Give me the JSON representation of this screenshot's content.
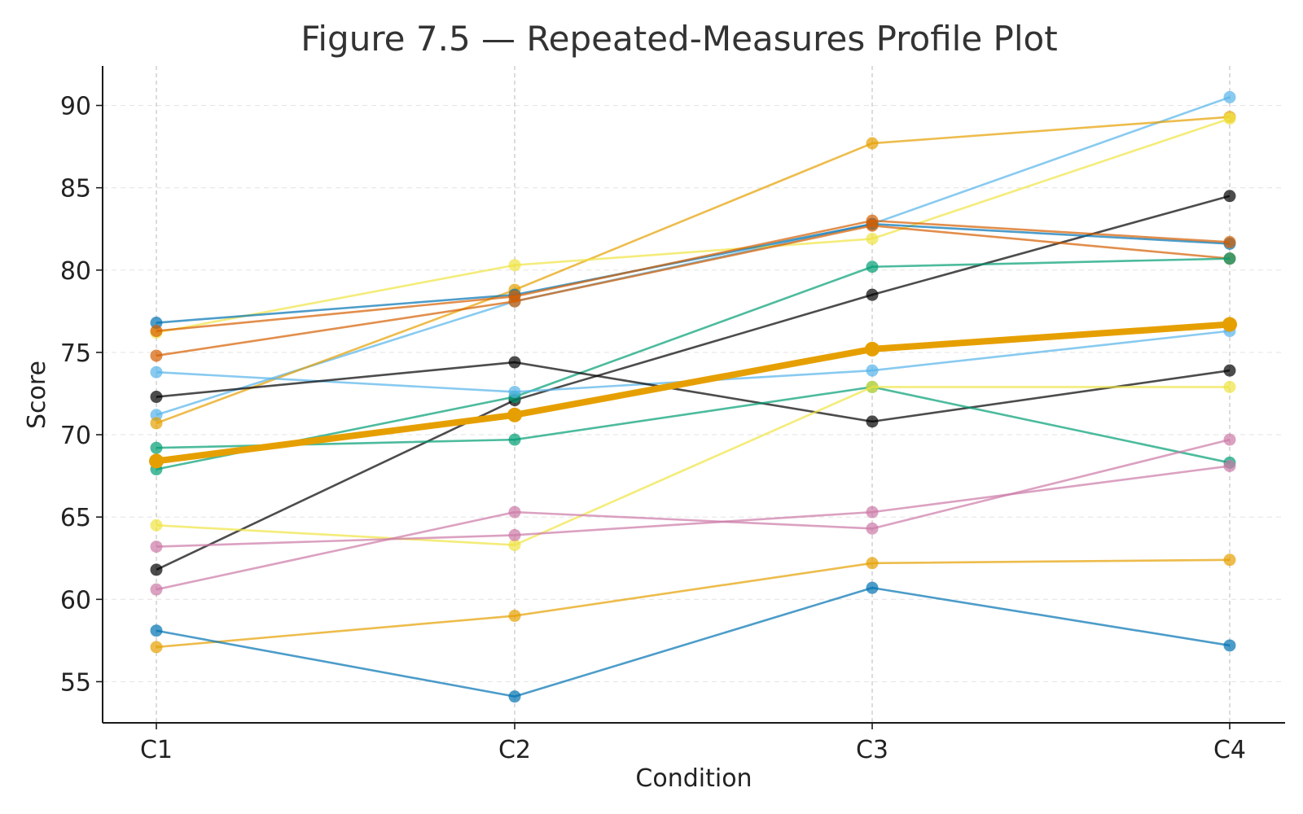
{
  "chart_data": {
    "type": "line",
    "title": "Figure 7.5 — Repeated-Measures Profile Plot",
    "xlabel": "Condition",
    "ylabel": "Score",
    "categories": [
      "C1",
      "C2",
      "C3",
      "C4"
    ],
    "ylim": [
      52.5,
      92.4
    ],
    "yticks": [
      55,
      60,
      65,
      70,
      75,
      80,
      85,
      90
    ],
    "grid": {
      "horizontal": true,
      "vertical": true
    },
    "legend": "none",
    "series": [
      {
        "color": "#56B4E9",
        "values": [
          71.2,
          78.1,
          82.8,
          90.5
        ]
      },
      {
        "color": "#E69F00",
        "values": [
          70.7,
          78.8,
          87.7,
          89.3
        ]
      },
      {
        "color": "#F0E442",
        "values": [
          76.2,
          80.3,
          81.9,
          89.2
        ]
      },
      {
        "color": "#000000",
        "values": [
          61.8,
          72.1,
          78.5,
          84.5
        ]
      },
      {
        "color": "#0072B2",
        "values": [
          76.8,
          78.5,
          82.8,
          81.6
        ]
      },
      {
        "color": "#D55E00",
        "values": [
          76.3,
          78.4,
          83.0,
          81.7
        ]
      },
      {
        "color": "#D55E00",
        "values": [
          74.8,
          78.1,
          82.7,
          80.7
        ]
      },
      {
        "color": "#009E73",
        "values": [
          67.9,
          72.3,
          80.2,
          80.7
        ]
      },
      {
        "color": "#56B4E9",
        "values": [
          73.8,
          72.6,
          73.9,
          76.3
        ]
      },
      {
        "color": "#000000",
        "values": [
          72.3,
          74.4,
          70.8,
          73.9
        ]
      },
      {
        "color": "#009E73",
        "values": [
          69.2,
          69.7,
          72.9,
          68.3
        ]
      },
      {
        "color": "#F0E442",
        "values": [
          64.5,
          63.3,
          72.9,
          72.9
        ]
      },
      {
        "color": "#CC79A7",
        "values": [
          60.6,
          65.3,
          64.3,
          69.7
        ]
      },
      {
        "color": "#CC79A7",
        "values": [
          63.2,
          63.9,
          65.3,
          68.1
        ]
      },
      {
        "color": "#E69F00",
        "values": [
          57.1,
          59.0,
          62.2,
          62.4
        ]
      },
      {
        "color": "#0072B2",
        "values": [
          58.1,
          54.1,
          60.7,
          57.2
        ]
      }
    ],
    "mean_series": {
      "color": "#E69F00",
      "values": [
        68.4,
        71.2,
        75.2,
        76.7
      ]
    }
  }
}
